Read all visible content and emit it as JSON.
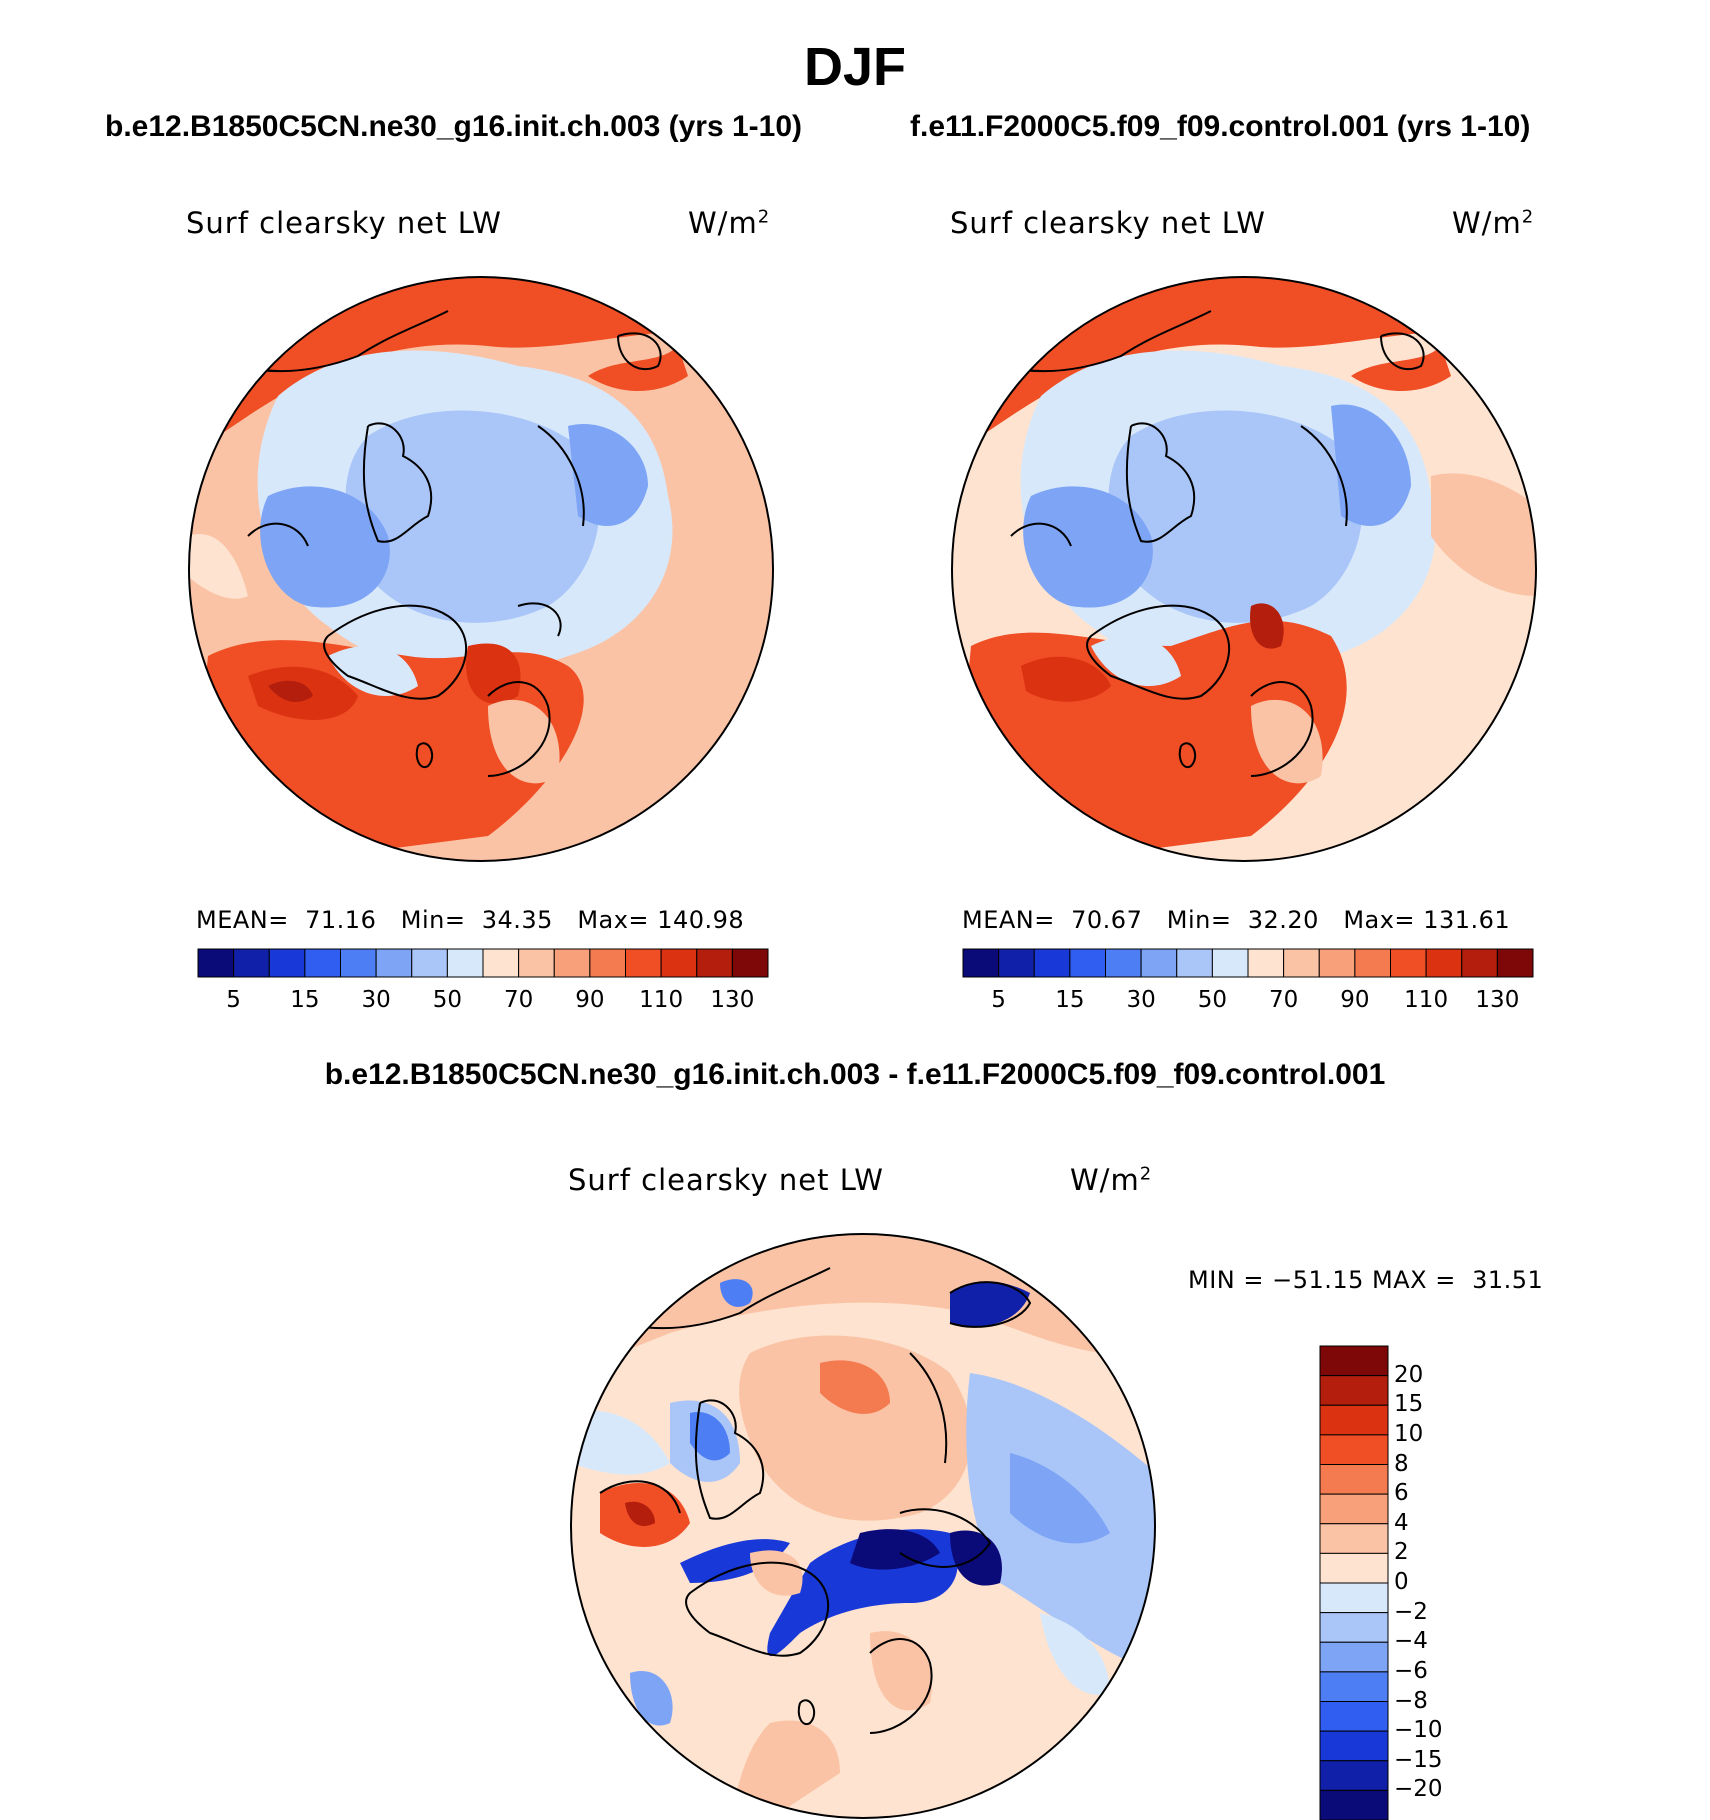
{
  "title": "DJF",
  "panels": [
    {
      "case_title": "b.e12.B1850C5CN.ne30_g16.init.ch.003 (yrs 1-10)",
      "variable": "Surf clearsky net LW",
      "units_base": "W/m",
      "units_exp": "2",
      "stats": {
        "mean_label": "MEAN=",
        "mean": "71.16",
        "min_label": "Min=",
        "min": "34.35",
        "max_label": "Max=",
        "max": "140.98"
      }
    },
    {
      "case_title": "f.e11.F2000C5.f09_f09.control.001 (yrs 1-10)",
      "variable": "Surf clearsky net LW",
      "units_base": "W/m",
      "units_exp": "2",
      "stats": {
        "mean_label": "MEAN=",
        "mean": "70.67",
        "min_label": "Min=",
        "min": "32.20",
        "max_label": "Max=",
        "max": "131.61"
      }
    }
  ],
  "diff_panel": {
    "title": "b.e12.B1850C5CN.ne30_g16.init.ch.003 - f.e11.F2000C5.f09_f09.control.001",
    "variable": "Surf clearsky net LW",
    "units_base": "W/m",
    "units_exp": "2",
    "minmax": "MIN = −51.15 MAX =  31.51"
  },
  "colorbar_main": {
    "tick_labels": [
      "5",
      "15",
      "30",
      "50",
      "70",
      "90",
      "110",
      "130"
    ],
    "colors": [
      "#0a0a78",
      "#1020a8",
      "#1838d8",
      "#2f5ef0",
      "#4d7ef3",
      "#7ea5f5",
      "#aac6f8",
      "#d8e8fb",
      "#fde3d0",
      "#fbc3a5",
      "#f7a07a",
      "#f47a4f",
      "#f04e25",
      "#db3212",
      "#b41e0c",
      "#7e0808"
    ]
  },
  "colorbar_diff": {
    "tick_labels": [
      "20",
      "15",
      "10",
      "8",
      "6",
      "4",
      "2",
      "0",
      "−2",
      "−4",
      "−6",
      "−8",
      "−10",
      "−15",
      "−20"
    ],
    "colors": [
      "#7e0808",
      "#b41e0c",
      "#db3212",
      "#f04e25",
      "#f47a4f",
      "#f7a07a",
      "#fbc3a5",
      "#fde3d0",
      "#d8e8fb",
      "#aac6f8",
      "#7ea5f5",
      "#4d7ef3",
      "#2f5ef0",
      "#1838d8",
      "#1020a8",
      "#0a0a78"
    ]
  }
}
